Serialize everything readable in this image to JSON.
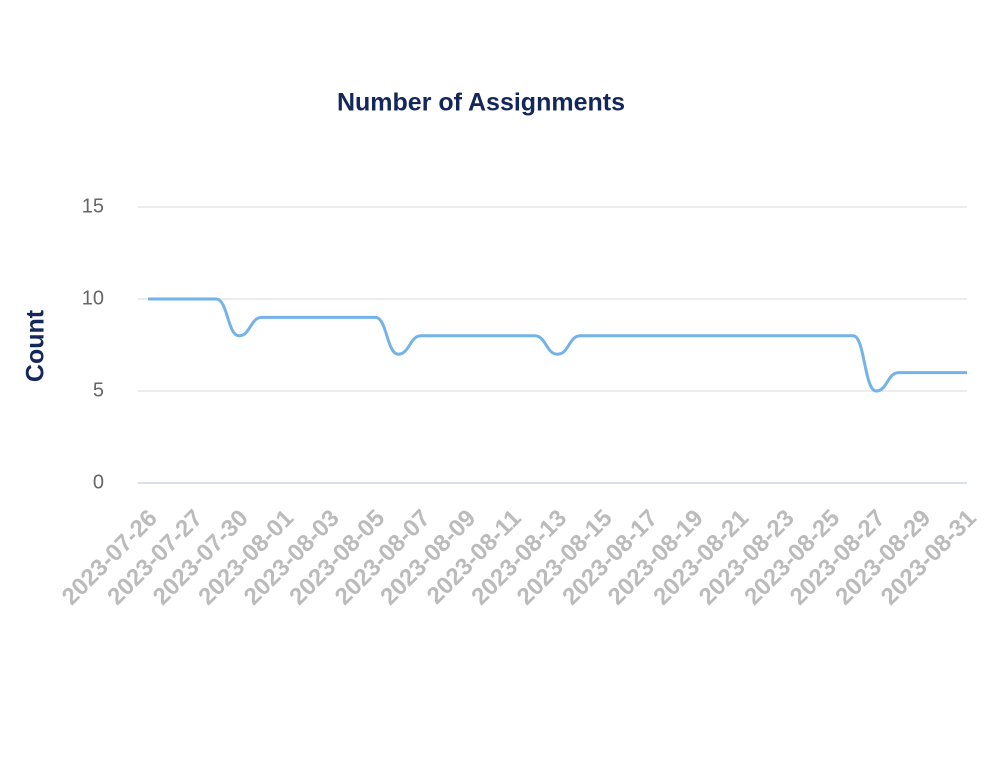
{
  "chart_data": {
    "type": "line",
    "title": "Number of Assignments",
    "y_label": "Count",
    "categories": [
      "2023-07-26",
      null,
      "2023-07-27",
      null,
      "2023-07-30",
      null,
      "2023-08-01",
      null,
      "2023-08-03",
      null,
      "2023-08-05",
      null,
      "2023-08-07",
      null,
      "2023-08-09",
      null,
      "2023-08-11",
      null,
      "2023-08-13",
      null,
      "2023-08-15",
      null,
      "2023-08-17",
      null,
      "2023-08-19",
      null,
      "2023-08-21",
      null,
      "2023-08-23",
      null,
      "2023-08-25",
      null,
      "2023-08-27",
      null,
      "2023-08-29",
      null,
      "2023-08-31"
    ],
    "series": [
      {
        "name": "Count",
        "color": "#74b3e8",
        "values": [
          10,
          10,
          10,
          10,
          8,
          9,
          9,
          9,
          9,
          9,
          9,
          7,
          8,
          8,
          8,
          8,
          8,
          8,
          7,
          8,
          8,
          8,
          8,
          8,
          8,
          8,
          8,
          8,
          8,
          8,
          8,
          8,
          5,
          6,
          6,
          6,
          6
        ]
      }
    ],
    "ylim": [
      0,
      15
    ],
    "yticks": [
      0,
      5,
      10,
      15
    ],
    "grid": true
  }
}
